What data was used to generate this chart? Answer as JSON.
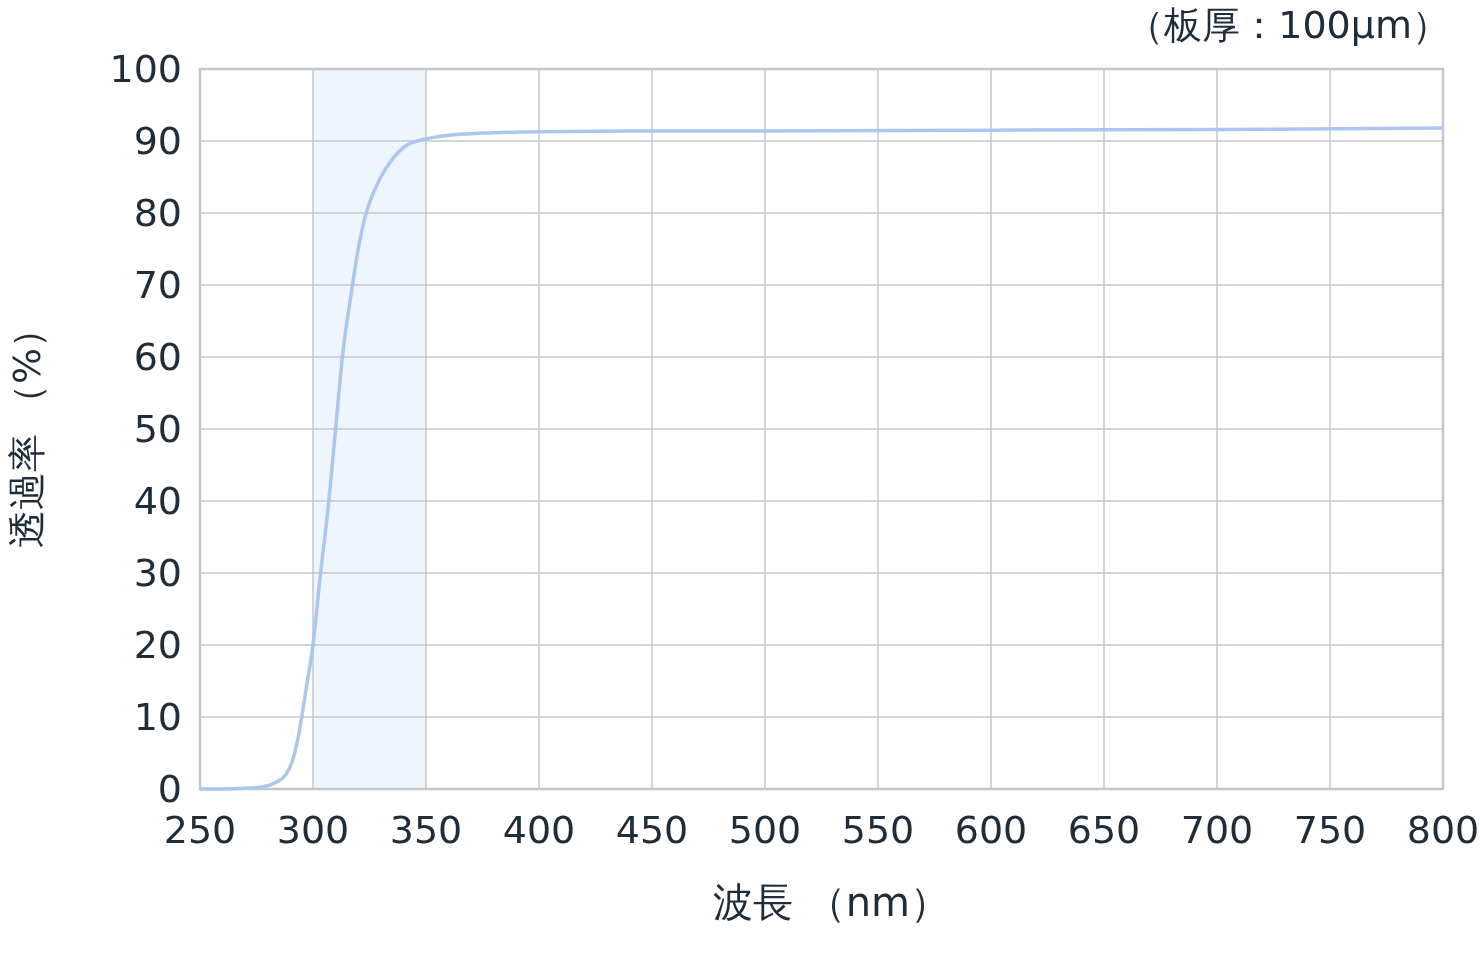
{
  "chart_data": {
    "type": "line",
    "subtitle": "（板厚：100µm）",
    "xlabel": "波長 （nm）",
    "ylabel": "透過率 （%）",
    "xlim": [
      250,
      800
    ],
    "xticks": [
      250,
      300,
      350,
      400,
      450,
      500,
      550,
      600,
      650,
      700,
      750,
      800
    ],
    "ylim": [
      0,
      100
    ],
    "yticks": [
      0,
      10,
      20,
      30,
      40,
      50,
      60,
      70,
      80,
      90,
      100
    ],
    "grid": true,
    "bands": [
      {
        "axis": "x",
        "from": 300,
        "to": 350,
        "color": "#eef5fd"
      }
    ],
    "series": [
      {
        "color": "#adc6f0",
        "x": [
          250,
          260,
          270,
          278,
          284,
          288,
          291,
          293,
          295,
          297,
          300,
          303,
          307,
          310,
          313,
          317,
          320,
          324,
          327,
          330,
          334,
          338,
          342,
          346,
          350,
          360,
          375,
          400,
          450,
          500,
          600,
          700,
          800
        ],
        "values": [
          0,
          0,
          0.1,
          0.3,
          1,
          2,
          4,
          6.5,
          10,
          14,
          20,
          29,
          40,
          50,
          60,
          69,
          75,
          80.5,
          83,
          85,
          87,
          88.5,
          89.5,
          90,
          90.3,
          90.8,
          91.1,
          91.3,
          91.4,
          91.4,
          91.5,
          91.6,
          91.8
        ]
      }
    ]
  }
}
